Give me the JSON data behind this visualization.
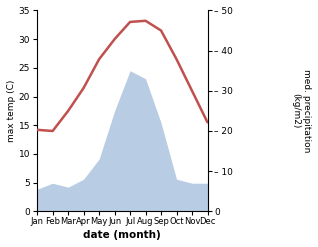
{
  "months": [
    "Jan",
    "Feb",
    "Mar",
    "Apr",
    "May",
    "Jun",
    "Jul",
    "Aug",
    "Sep",
    "Oct",
    "Nov",
    "Dec"
  ],
  "temperature": [
    14.2,
    14.0,
    17.5,
    21.5,
    26.5,
    30.0,
    33.0,
    33.2,
    31.5,
    26.5,
    21.0,
    15.5
  ],
  "precipitation": [
    5.5,
    7.0,
    6.0,
    8.0,
    13.0,
    25.0,
    35.0,
    33.0,
    22.0,
    8.0,
    7.0,
    7.0
  ],
  "temp_ylim": [
    0,
    35
  ],
  "precip_ylim": [
    0,
    50
  ],
  "temp_color": "#c0504d",
  "precip_color": "#b8cce4",
  "xlabel": "date (month)",
  "ylabel_left": "max temp (C)",
  "ylabel_right": "med. precipitation\n(kg/m2)",
  "background_color": "#ffffff",
  "temp_yticks": [
    0,
    5,
    10,
    15,
    20,
    25,
    30,
    35
  ],
  "precip_yticks": [
    0,
    10,
    20,
    30,
    40,
    50
  ]
}
